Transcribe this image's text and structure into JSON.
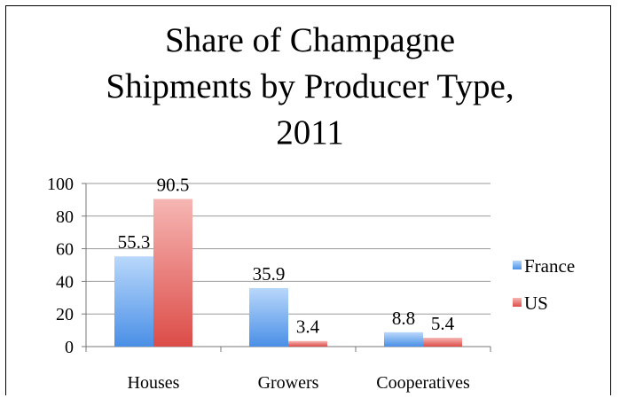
{
  "chart_data": {
    "type": "bar",
    "title_lines": [
      "Share of Champagne",
      "Shipments by Producer Type,",
      "2011"
    ],
    "categories": [
      "Houses",
      "Growers",
      "Cooperatives"
    ],
    "series": [
      {
        "name": "France",
        "values": [
          55.3,
          35.9,
          8.8
        ],
        "color": "#6aa9ef"
      },
      {
        "name": "US",
        "values": [
          90.5,
          3.4,
          5.4
        ],
        "color": "#e35f5c"
      }
    ],
    "data_labels": [
      [
        "55.3",
        "35.9",
        "8.8"
      ],
      [
        "90.5",
        "3.4",
        "5.4"
      ]
    ],
    "yticks": [
      "0",
      "20",
      "40",
      "60",
      "80",
      "100"
    ],
    "ylim": [
      0,
      100
    ],
    "grid": true,
    "legend_position": "right"
  }
}
